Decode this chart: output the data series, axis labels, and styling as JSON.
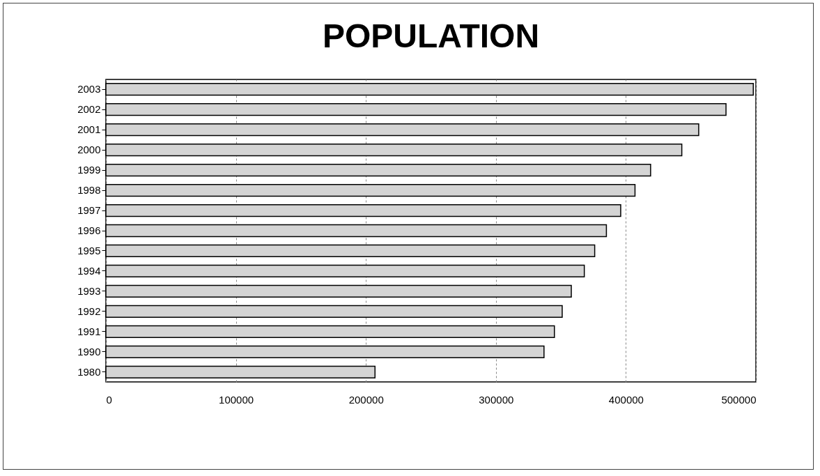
{
  "chart_data": {
    "type": "bar",
    "title": "POPULATION",
    "orientation": "horizontal",
    "categories": [
      "2003",
      "2002",
      "2001",
      "2000",
      "1999",
      "1998",
      "1997",
      "1996",
      "1995",
      "1994",
      "1993",
      "1992",
      "1991",
      "1990",
      "1980"
    ],
    "values": [
      498000,
      477000,
      456000,
      443000,
      419000,
      407000,
      396000,
      385000,
      376000,
      368000,
      358000,
      351000,
      345000,
      337000,
      207000
    ],
    "color": "#d4d4d4",
    "xlim": [
      0,
      500000
    ],
    "xticks": [
      0,
      100000,
      200000,
      300000,
      400000,
      500000
    ],
    "grid": "x"
  }
}
